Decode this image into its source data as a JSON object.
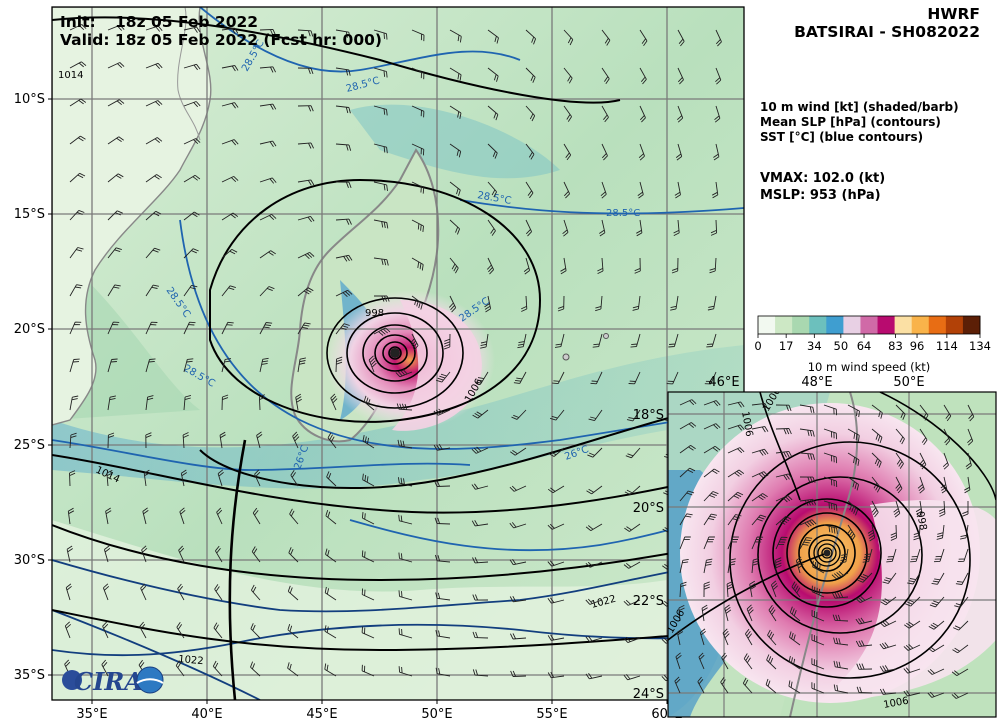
{
  "header": {
    "init_label": "Init:",
    "init_value": "18z 05 Feb 2022",
    "valid_text": "Valid: 18z 05 Feb 2022 (Fcst hr: 000)",
    "model": "HWRF",
    "storm": "BATSIRAI - SH082022"
  },
  "legend": {
    "lines": [
      "10 m wind [kt] (shaded/barb)",
      "Mean SLP [hPa] (contours)",
      "SST [°C] (blue contours)"
    ],
    "vmax": "VMAX: 102.0 (kt)",
    "mslp": "MSLP:  953 (hPa)"
  },
  "colorbar": {
    "ticks": [
      "0",
      "17",
      "34",
      "50",
      "64",
      "83",
      "96",
      "114",
      "134"
    ],
    "tick_values": [
      0,
      17,
      34,
      50,
      64,
      83,
      96,
      114,
      134
    ],
    "range": [
      0,
      134
    ],
    "label": "10 m wind speed (kt)",
    "colors": [
      "#f2f9f0",
      "#cde8c5",
      "#a9d8b0",
      "#6cc0bd",
      "#3f9ed0",
      "#e8d0e4",
      "#d06aa7",
      "#b80b6f",
      "#fbe0a4",
      "#f9b34a",
      "#e86d14",
      "#b24107",
      "#5c1f06"
    ]
  },
  "main_map": {
    "lon_ticks": [
      "35°E",
      "40°E",
      "45°E",
      "50°E",
      "55°E",
      "60°E"
    ],
    "lat_ticks": [
      "10°S",
      "15°S",
      "20°S",
      "25°S",
      "30°S",
      "35°S"
    ],
    "lon_range": [
      33.2,
      63.3
    ],
    "lat_range": [
      -36.6,
      -6.7
    ],
    "slp_labels": [
      "1014",
      "998",
      "1006",
      "1014",
      "1022",
      "1022"
    ],
    "sst_labels": [
      "28.5°C",
      "28.5°C",
      "28.5°C",
      "28.5°C",
      "28.5°C",
      "28.5°C",
      "28.5°C",
      "26°C",
      "26°C"
    ],
    "logo_text": "CIRA"
  },
  "inset_map": {
    "lon_ticks": [
      "46°E",
      "48°E",
      "50°E"
    ],
    "lat_ticks": [
      "18°S",
      "20°S",
      "22°S",
      "24°S"
    ],
    "slp_labels": [
      "1006",
      "1006",
      "998",
      "1006",
      "1006"
    ]
  },
  "storm_center": {
    "lon": 48.1,
    "lat": -21.1
  }
}
